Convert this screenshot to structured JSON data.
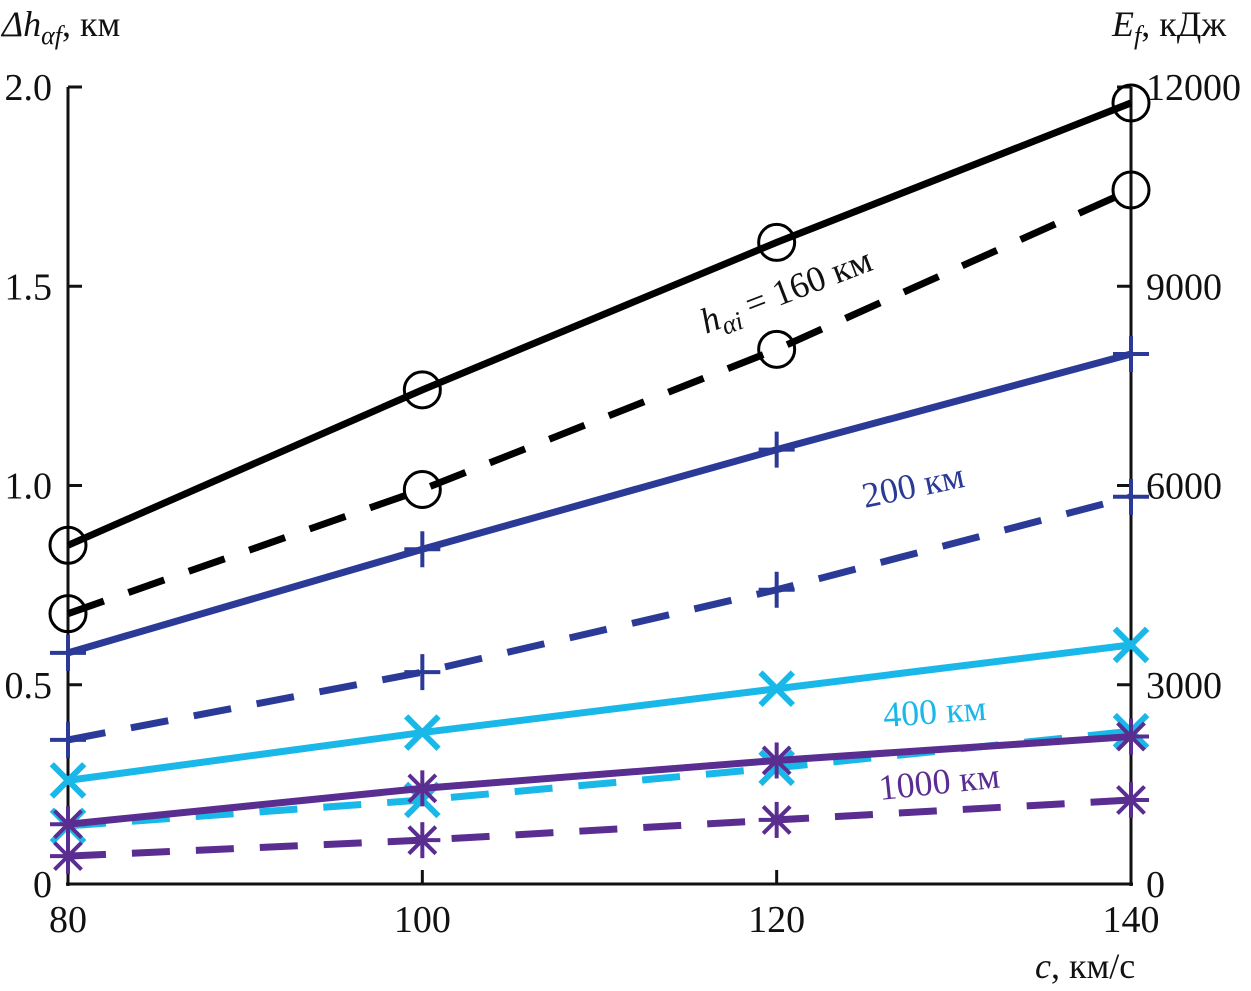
{
  "chart_data": {
    "type": "line",
    "x_axis": {
      "label_var": "c",
      "label_unit": ", км/с",
      "range": [
        80,
        140
      ],
      "ticks": [
        "80",
        "100",
        "120",
        "140"
      ]
    },
    "y_left": {
      "label_var": "Δh",
      "label_sub": "αf",
      "label_unit": ", км",
      "range": [
        0,
        2.0
      ],
      "ticks": [
        "0",
        "0.5",
        "1.0",
        "1.5",
        "2.0"
      ]
    },
    "y_right": {
      "label_var": "E",
      "label_sub": "f",
      "label_unit": ", кДж",
      "range": [
        0,
        12000
      ],
      "ticks": [
        "0",
        "3000",
        "6000",
        "9000",
        "12000"
      ]
    },
    "x": [
      80,
      100,
      120,
      140
    ],
    "series": [
      {
        "group": "160",
        "axis": "left",
        "style": "solid",
        "marker": "circle",
        "color": "#000000",
        "values": [
          0.85,
          1.24,
          1.61,
          1.96
        ]
      },
      {
        "group": "160",
        "axis": "right",
        "style": "dashed",
        "marker": "circle",
        "color": "#000000",
        "values": [
          4070,
          5940,
          8050,
          10450
        ]
      },
      {
        "group": "200",
        "axis": "left",
        "style": "solid",
        "marker": "plus",
        "color": "#2b3a96",
        "values": [
          0.58,
          0.84,
          1.09,
          1.33
        ]
      },
      {
        "group": "200",
        "axis": "right",
        "style": "dashed",
        "marker": "plus",
        "color": "#2b3a96",
        "values": [
          2170,
          3190,
          4430,
          5830
        ]
      },
      {
        "group": "400",
        "axis": "left",
        "style": "solid",
        "marker": "cross",
        "color": "#1ab8e8",
        "values": [
          0.26,
          0.38,
          0.49,
          0.6
        ]
      },
      {
        "group": "400",
        "axis": "right",
        "style": "dashed",
        "marker": "cross",
        "color": "#1ab8e8",
        "values": [
          875,
          1265,
          1750,
          2300
        ]
      },
      {
        "group": "1000",
        "axis": "left",
        "style": "solid",
        "marker": "asterisk",
        "color": "#5a2d91",
        "values": [
          0.15,
          0.24,
          0.31,
          0.37
        ]
      },
      {
        "group": "1000",
        "axis": "right",
        "style": "dashed",
        "marker": "asterisk",
        "color": "#5a2d91",
        "values": [
          420,
          660,
          965,
          1265
        ]
      }
    ],
    "annotations": {
      "h160_var": "h",
      "h160_sub": "αi",
      "h160_rest": " = 160 км",
      "h200": "200 км",
      "h400": "400 км",
      "h1000": "1000 км"
    },
    "grid": false,
    "legend": "none"
  }
}
